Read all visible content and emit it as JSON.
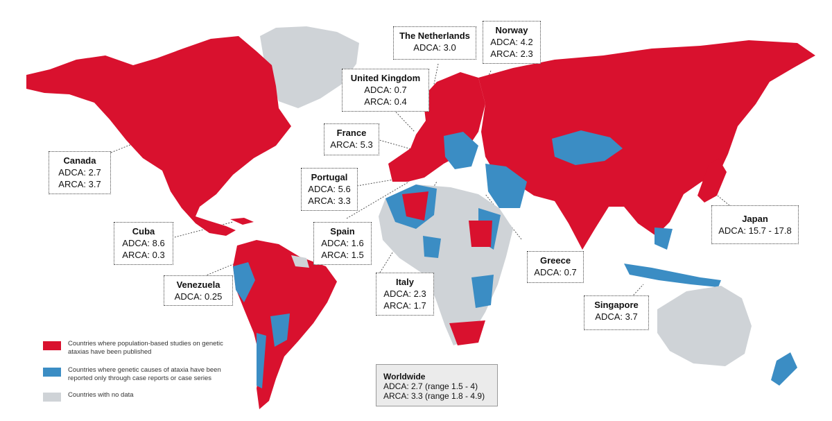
{
  "colors": {
    "population_studies": "#d9112e",
    "case_reports": "#3b8dc4",
    "no_data": "#cfd3d7",
    "background": "#ffffff"
  },
  "legend": [
    {
      "key": "population_studies",
      "text": "Countries where population-based studies on genetic ataxias have been published"
    },
    {
      "key": "case_reports",
      "text": "Countries where genetic causes of ataxia have been reported only through case reports or case series"
    },
    {
      "key": "no_data",
      "text": "Countries with no data"
    }
  ],
  "callouts": {
    "netherlands": {
      "name": "The Netherlands",
      "line1": "ADCA: 3.0"
    },
    "norway": {
      "name": "Norway",
      "line1": "ADCA: 4.2",
      "line2": "ARCA: 2.3"
    },
    "uk": {
      "name": "United Kingdom",
      "line1": "ADCA: 0.7",
      "line2": "ARCA: 0.4"
    },
    "france": {
      "name": "France",
      "line1": "ARCA: 5.3"
    },
    "canada": {
      "name": "Canada",
      "line1": "ADCA: 2.7",
      "line2": "ARCA: 3.7"
    },
    "portugal": {
      "name": "Portugal",
      "line1": "ADCA: 5.6",
      "line2": "ARCA: 3.3"
    },
    "cuba": {
      "name": "Cuba",
      "line1": "ADCA: 8.6",
      "line2": "ARCA: 0.3"
    },
    "spain": {
      "name": "Spain",
      "line1": "ADCA: 1.6",
      "line2": "ARCA: 1.5"
    },
    "japan": {
      "name": "Japan",
      "line1": "ADCA: 15.7 - 17.8"
    },
    "greece": {
      "name": "Greece",
      "line1": "ADCA: 0.7"
    },
    "venezuela": {
      "name": "Venezuela",
      "line1": "ADCA: 0.25"
    },
    "italy": {
      "name": "Italy",
      "line1": "ADCA: 2.3",
      "line2": "ARCA: 1.7"
    },
    "singapore": {
      "name": "Singapore",
      "line1": "ADCA: 3.7"
    }
  },
  "worldwide": {
    "title": "Worldwide",
    "line1": "ADCA: 2.7 (range 1.5 - 4)",
    "line2": "ARCA: 3.3 (range 1.8 - 4.9)"
  }
}
